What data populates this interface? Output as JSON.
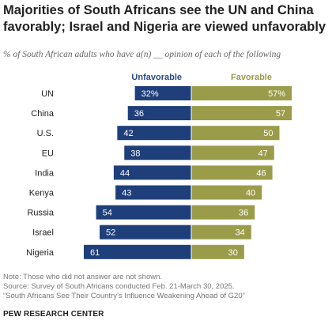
{
  "title": "Majorities of South Africans see the UN and China favorably; Israel and Nigeria are viewed unfavorably",
  "subtitle": "% of South African adults who have a(n) __ opinion of each of the following",
  "footer": {
    "note": "Note: Those who did not answer are not shown.",
    "source": "Source: Survey of South Africans conducted Feb. 21-March 30, 2025.",
    "report": "“South Africans See Their Country’s Influence Weakening Ahead of G20”",
    "brand": "PEW RESEARCH CENTER"
  },
  "chart_data": {
    "type": "bar",
    "orientation": "diverging-horizontal",
    "categories": [
      "UN",
      "China",
      "U.S.",
      "EU",
      "India",
      "Kenya",
      "Russia",
      "Israel",
      "Nigeria"
    ],
    "series": [
      {
        "name": "Unfavorable",
        "values": [
          32,
          36,
          42,
          38,
          44,
          43,
          54,
          52,
          61
        ],
        "labels": [
          "32%",
          "36",
          "42",
          "38",
          "44",
          "43",
          "54",
          "52",
          "61"
        ],
        "color": "#1f3f7a"
      },
      {
        "name": "Favorable",
        "values": [
          57,
          57,
          50,
          47,
          46,
          40,
          36,
          34,
          30
        ],
        "labels": [
          "57%",
          "57",
          "50",
          "47",
          "46",
          "40",
          "36",
          "34",
          "30"
        ],
        "color": "#9a9c4a"
      }
    ],
    "legend_colors": {
      "Unfavorable": "#2a4a87",
      "Favorable": "#9a9c4a"
    },
    "legend_placement": "top",
    "grid": false
  }
}
